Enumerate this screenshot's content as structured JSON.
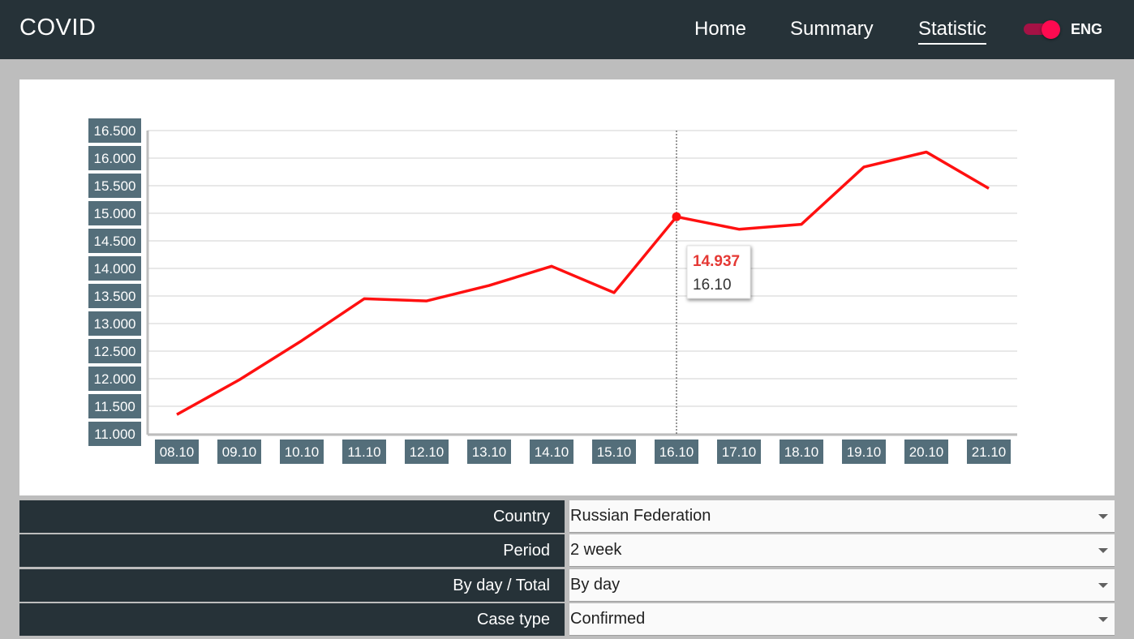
{
  "header": {
    "brand": "COVID",
    "nav": [
      {
        "label": "Home",
        "active": false
      },
      {
        "label": "Summary",
        "active": false
      },
      {
        "label": "Statistic",
        "active": true
      }
    ],
    "language_toggle": {
      "on": true,
      "label": "ENG"
    }
  },
  "chart_data": {
    "type": "line",
    "categories": [
      "08.10",
      "09.10",
      "10.10",
      "11.10",
      "12.10",
      "13.10",
      "14.10",
      "15.10",
      "16.10",
      "17.10",
      "18.10",
      "19.10",
      "20.10",
      "21.10"
    ],
    "series": [
      {
        "values": [
          11350,
          11980,
          12690,
          13450,
          13410,
          13690,
          14040,
          13560,
          14937,
          14710,
          14800,
          15840,
          16110,
          15450
        ],
        "color": "#ff1010"
      }
    ],
    "y_ticks": [
      "11.000",
      "11.500",
      "12.000",
      "12.500",
      "13.000",
      "13.500",
      "14.000",
      "14.500",
      "15.000",
      "15.500",
      "16.000",
      "16.500"
    ],
    "ylim": [
      11000,
      16500
    ],
    "grid": true,
    "tooltip": {
      "index": 8,
      "value": "14.937",
      "label": "16.10"
    },
    "colors": {
      "tick_bg": "#546e7a",
      "tick_text": "#ffffff",
      "tooltip_value": "#e53935"
    }
  },
  "filters": [
    {
      "label": "Country",
      "value": "Russian Federation"
    },
    {
      "label": "Period",
      "value": "2 week"
    },
    {
      "label": "By day / Total",
      "value": "By day"
    },
    {
      "label": "Case type",
      "value": "Confirmed"
    }
  ]
}
